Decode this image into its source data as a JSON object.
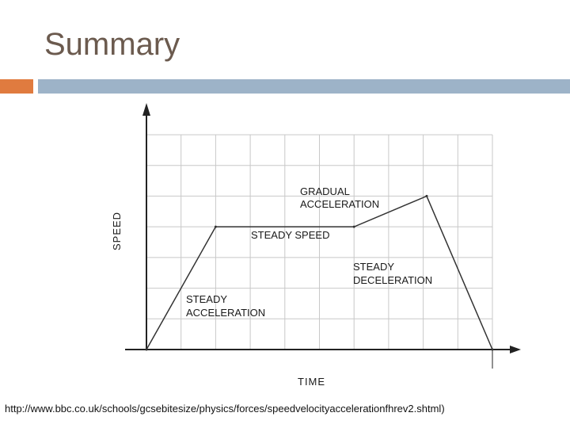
{
  "slide": {
    "title": "Summary",
    "source": "http://www.bbc.co.uk/schools/gcsebitesize/physics/forces/speedvelocityaccelerationfhrev2.shtml)",
    "colors": {
      "accent_left": "#e07b3f",
      "accent_right": "#9db3c8",
      "title": "#6b5a4e"
    }
  },
  "chart_data": {
    "type": "line",
    "xlabel": "TIME",
    "ylabel": "SPEED",
    "xlim": [
      0,
      10
    ],
    "ylim": [
      0,
      7
    ],
    "grid": true,
    "series": [
      {
        "x": [
          0,
          2,
          6,
          8.1,
          10
        ],
        "y": [
          0,
          4,
          4,
          5,
          0
        ]
      }
    ],
    "annotations": [
      {
        "text": [
          "STEADY",
          "ACCELERATION"
        ]
      },
      {
        "text": [
          "STEADY SPEED"
        ]
      },
      {
        "text": [
          "GRADUAL",
          "ACCELERATION"
        ]
      },
      {
        "text": [
          "STEADY",
          "DECELERATION"
        ]
      }
    ]
  }
}
